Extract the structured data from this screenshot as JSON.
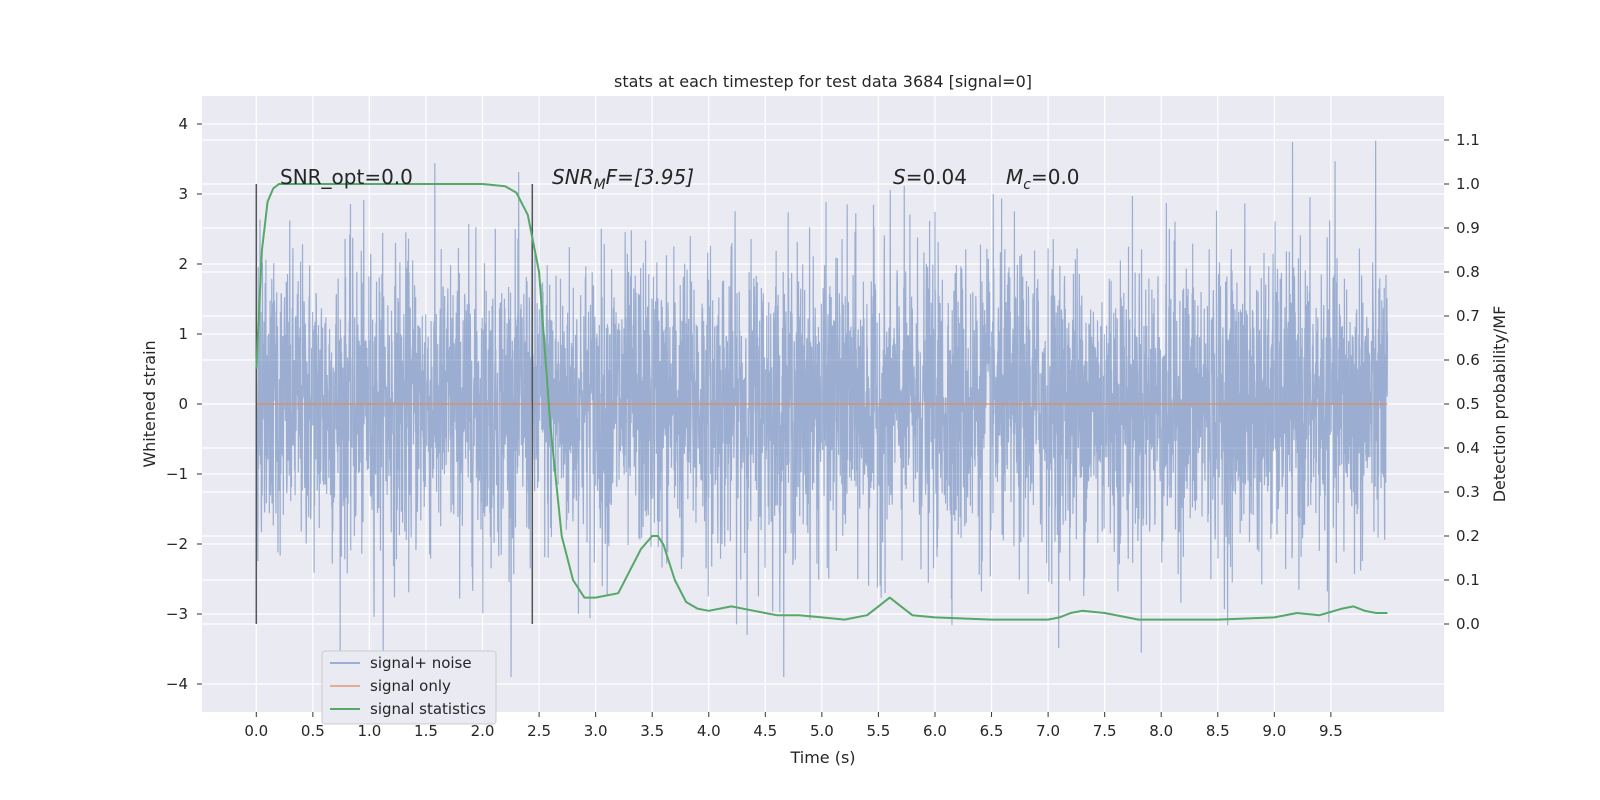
{
  "chart_data": {
    "type": "line",
    "title": "stats at each timestep for test data 3684 [signal=0]",
    "xlabel": "Time (s)",
    "ylabel_left": "Whitened strain",
    "ylabel_right": "Detection probability/MF",
    "xlim": [
      -0.48,
      10.5
    ],
    "ylim_left": [
      -4.4,
      4.4
    ],
    "ylim_right": [
      -0.2,
      1.2
    ],
    "x_ticks": [
      "0.0",
      "0.5",
      "1.0",
      "1.5",
      "2.0",
      "2.5",
      "3.0",
      "3.5",
      "4.0",
      "4.5",
      "5.0",
      "5.5",
      "6.0",
      "6.5",
      "7.0",
      "7.5",
      "8.0",
      "8.5",
      "9.0",
      "9.5"
    ],
    "y_left_ticks": [
      "4",
      "3",
      "2",
      "1",
      "0",
      "−1",
      "−2",
      "−3",
      "−4"
    ],
    "y_right_ticks": [
      "1.1",
      "1.0",
      "0.9",
      "0.8",
      "0.7",
      "0.6",
      "0.5",
      "0.4",
      "0.3",
      "0.2",
      "0.1",
      "0.0"
    ],
    "grid": true,
    "legend_placement": "lower-left",
    "annotations": {
      "snr_opt": "SNR_opt=0.0",
      "snr_mf_main": "SNR",
      "snr_mf_sub": "M",
      "snr_mf_tail": "F=[3.95]",
      "s_main": "S",
      "s_tail": "=0.04",
      "mc_main": "M",
      "mc_sub": "c",
      "mc_tail": "=0.0"
    },
    "vertical_markers": [
      0.0,
      2.44
    ],
    "series": [
      {
        "name": "signal+ noise",
        "color": "#4c72b0",
        "x_range": [
          0.0,
          10.0
        ],
        "amplitude_envelope": [
          -3.9,
          4.1
        ]
      },
      {
        "name": "signal only",
        "color": "#dd8452",
        "x_range": [
          0.0,
          10.0
        ],
        "values_constant": 0.0
      },
      {
        "name": "signal statistics",
        "color": "#55a868",
        "axis": "right",
        "x": [
          0.0,
          0.05,
          0.1,
          0.15,
          0.2,
          0.5,
          1.0,
          1.5,
          2.0,
          2.2,
          2.3,
          2.4,
          2.5,
          2.6,
          2.7,
          2.8,
          2.9,
          3.0,
          3.2,
          3.4,
          3.5,
          3.55,
          3.6,
          3.7,
          3.8,
          3.9,
          4.0,
          4.2,
          4.4,
          4.6,
          4.8,
          5.0,
          5.2,
          5.4,
          5.5,
          5.6,
          5.7,
          5.8,
          6.0,
          6.5,
          7.0,
          7.1,
          7.2,
          7.3,
          7.5,
          7.8,
          8.0,
          8.5,
          9.0,
          9.2,
          9.4,
          9.6,
          9.7,
          9.8,
          9.9,
          10.0
        ],
        "values": [
          0.58,
          0.85,
          0.96,
          0.99,
          1.0,
          1.0,
          1.0,
          1.0,
          1.0,
          0.995,
          0.98,
          0.93,
          0.8,
          0.45,
          0.2,
          0.1,
          0.06,
          0.06,
          0.07,
          0.17,
          0.2,
          0.2,
          0.18,
          0.1,
          0.05,
          0.035,
          0.03,
          0.04,
          0.03,
          0.02,
          0.02,
          0.015,
          0.01,
          0.02,
          0.04,
          0.06,
          0.04,
          0.02,
          0.015,
          0.01,
          0.01,
          0.015,
          0.025,
          0.03,
          0.025,
          0.01,
          0.01,
          0.01,
          0.015,
          0.025,
          0.02,
          0.035,
          0.04,
          0.03,
          0.025,
          0.025
        ]
      }
    ]
  }
}
